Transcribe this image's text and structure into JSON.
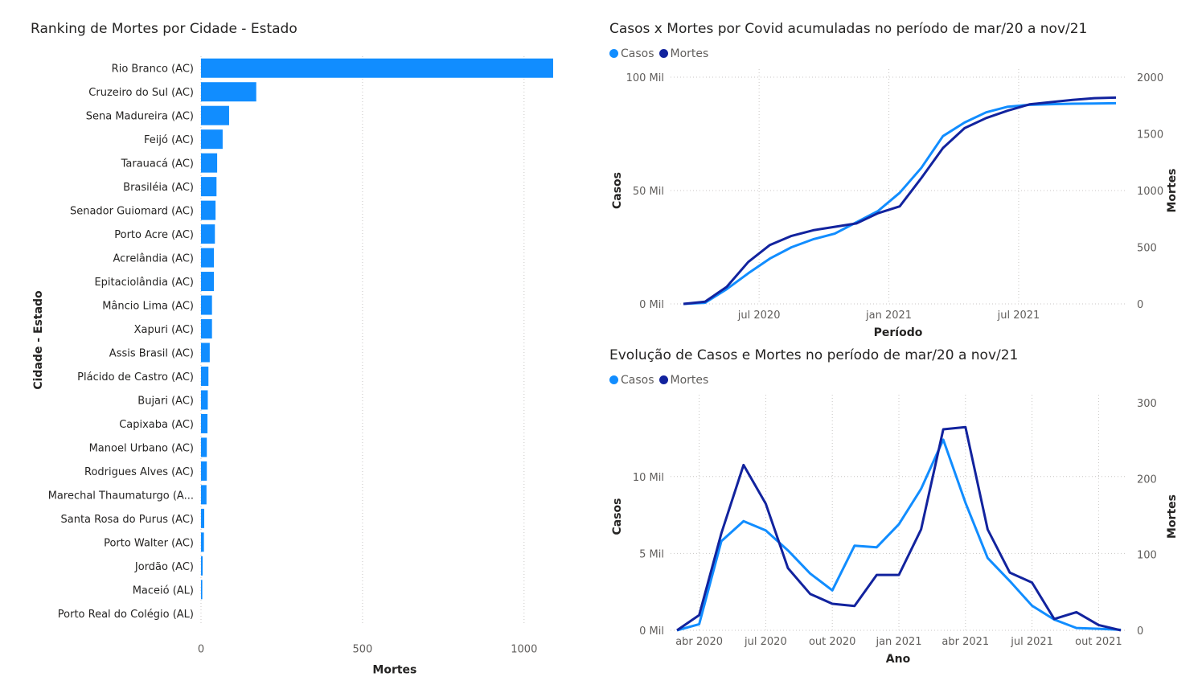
{
  "chart_data": [
    {
      "type": "bar",
      "orientation": "horizontal",
      "title": "Ranking de Mortes por Cidade - Estado",
      "xlabel": "Mortes",
      "ylabel": "Cidade - Estado",
      "xlim": [
        0,
        1100
      ],
      "xticks": [
        "0",
        "500",
        "1000"
      ],
      "xtick_values": [
        0,
        500,
        1000
      ],
      "color": "#118DFF",
      "categories": [
        "Rio Branco (AC)",
        "Cruzeiro do Sul (AC)",
        "Sena Madureira (AC)",
        "Feijó (AC)",
        "Tarauacá (AC)",
        "Brasiléia (AC)",
        "Senador Guiomard (AC)",
        "Porto Acre (AC)",
        "Acrelândia (AC)",
        "Epitaciolândia (AC)",
        "Mâncio Lima (AC)",
        "Xapuri (AC)",
        "Assis Brasil (AC)",
        "Plácido de Castro (AC)",
        "Bujari (AC)",
        "Capixaba (AC)",
        "Manoel Urbano (AC)",
        "Rodrigues Alves (AC)",
        "Marechal Thaumaturgo (A...",
        "Santa Rosa do Purus (AC)",
        "Porto Walter (AC)",
        "Jordão (AC)",
        "Maceió (AL)",
        "Porto Real do Colégio (AL)"
      ],
      "values": [
        1090,
        171,
        87,
        67,
        50,
        48,
        45,
        43,
        40,
        40,
        34,
        34,
        27,
        23,
        21,
        20,
        18,
        18,
        17,
        10,
        9,
        5,
        4,
        0
      ]
    },
    {
      "type": "line",
      "title": "Casos x Mortes por Covid acumuladas no período de mar/20 a nov/21",
      "xlabel": "Período",
      "ylabel": "Casos",
      "y2label": "Mortes",
      "xticks": [
        "jul 2020",
        "jan 2021",
        "jul 2021"
      ],
      "yticks": [
        "0 Mil",
        "50 Mil",
        "100 Mil"
      ],
      "ytick_values": [
        0,
        50000,
        100000
      ],
      "y2ticks": [
        "0",
        "500",
        "1000",
        "1500",
        "2000"
      ],
      "y2tick_values": [
        0,
        500,
        1000,
        1500,
        2000
      ],
      "ylim": [
        0,
        100000
      ],
      "y2lim": [
        0,
        2000
      ],
      "legend": "top-left",
      "x": [
        "2020-03",
        "2020-04",
        "2020-05",
        "2020-06",
        "2020-07",
        "2020-08",
        "2020-09",
        "2020-10",
        "2020-11",
        "2020-12",
        "2021-01",
        "2021-02",
        "2021-03",
        "2021-04",
        "2021-05",
        "2021-06",
        "2021-07",
        "2021-08",
        "2021-09",
        "2021-10",
        "2021-11"
      ],
      "series": [
        {
          "name": "Casos",
          "axis": "left",
          "color": "#118DFF",
          "values": [
            0,
            500,
            6500,
            13500,
            20000,
            25000,
            28500,
            31000,
            36000,
            41000,
            49000,
            60000,
            74000,
            80000,
            84500,
            87000,
            87800,
            88100,
            88300,
            88400,
            88500
          ]
        },
        {
          "name": "Mortes",
          "axis": "right",
          "color": "#12239E",
          "values": [
            0,
            20,
            150,
            370,
            520,
            600,
            650,
            680,
            710,
            800,
            860,
            1110,
            1375,
            1550,
            1640,
            1705,
            1760,
            1780,
            1800,
            1815,
            1820
          ]
        }
      ]
    },
    {
      "type": "line",
      "title": "Evolução de Casos e Mortes no período de mar/20 a nov/21",
      "xlabel": "Ano",
      "ylabel": "Casos",
      "y2label": "Mortes",
      "xticks": [
        "abr 2020",
        "jul 2020",
        "out 2020",
        "jan 2021",
        "abr 2021",
        "jul 2021",
        "out 2021"
      ],
      "yticks": [
        "0 Mil",
        "5 Mil",
        "10 Mil"
      ],
      "ytick_values": [
        0,
        5000,
        10000
      ],
      "y2ticks": [
        "0",
        "100",
        "200",
        "300"
      ],
      "y2tick_values": [
        0,
        100,
        200,
        300
      ],
      "ylim": [
        0,
        14800
      ],
      "y2lim": [
        0,
        300
      ],
      "legend": "top-left",
      "x": [
        "2020-03",
        "2020-04",
        "2020-05",
        "2020-06",
        "2020-07",
        "2020-08",
        "2020-09",
        "2020-10",
        "2020-11",
        "2020-12",
        "2021-01",
        "2021-02",
        "2021-03",
        "2021-04",
        "2021-05",
        "2021-06",
        "2021-07",
        "2021-08",
        "2021-09",
        "2021-10",
        "2021-11"
      ],
      "series": [
        {
          "name": "Casos",
          "axis": "left",
          "color": "#118DFF",
          "values": [
            0,
            400,
            5800,
            7100,
            6500,
            5200,
            3700,
            2600,
            5500,
            5400,
            6900,
            9200,
            12400,
            8300,
            4700,
            3200,
            1600,
            700,
            150,
            100,
            30
          ]
        },
        {
          "name": "Mortes",
          "axis": "right",
          "color": "#12239E",
          "values": [
            0,
            20,
            128,
            218,
            167,
            82,
            48,
            35,
            32,
            73,
            73,
            133,
            265,
            268,
            133,
            76,
            63,
            15,
            24,
            7,
            0
          ]
        }
      ]
    }
  ]
}
